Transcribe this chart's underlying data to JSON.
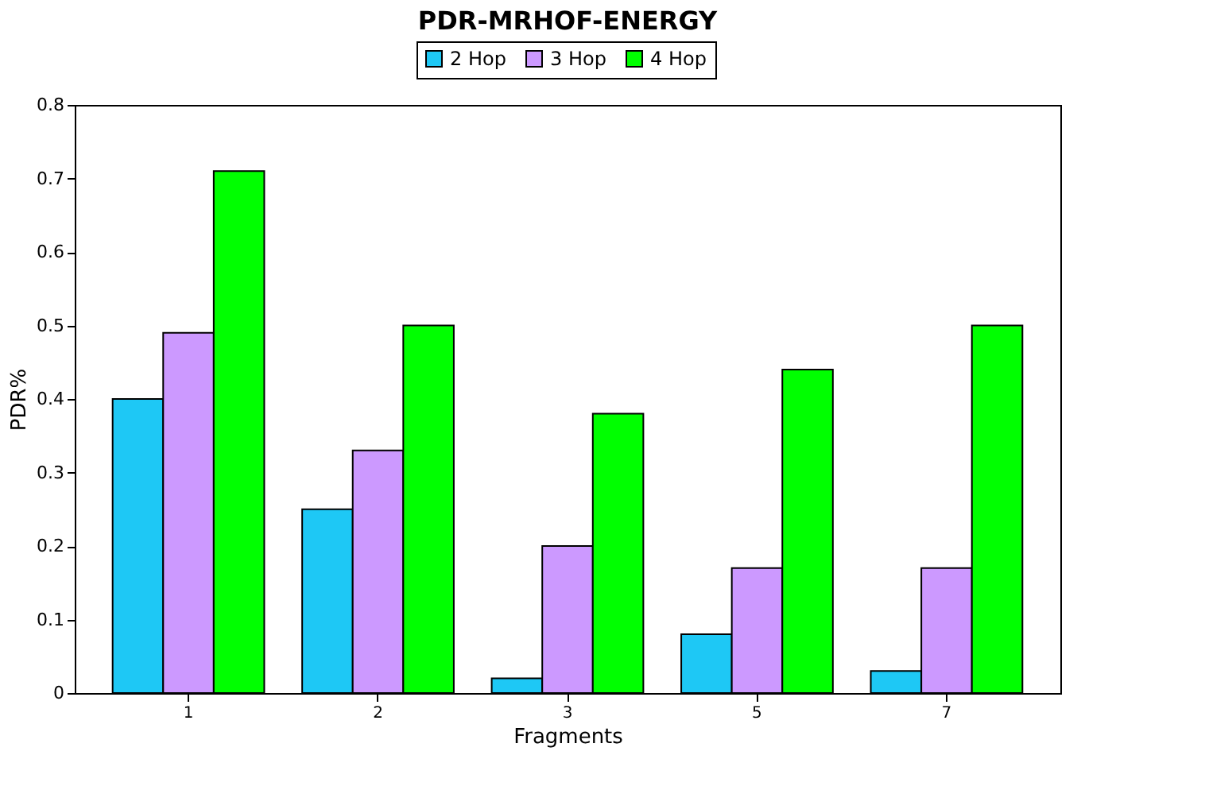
{
  "chart_data": {
    "type": "bar",
    "title": "PDR-MRHOF-ENERGY",
    "xlabel": "Fragments",
    "ylabel": "PDR%",
    "categories": [
      "1",
      "2",
      "3",
      "5",
      "7"
    ],
    "series": [
      {
        "name": "2 Hop",
        "color": "#1ec8f5",
        "values": [
          0.4,
          0.25,
          0.02,
          0.08,
          0.03
        ]
      },
      {
        "name": "3 Hop",
        "color": "#cc99ff",
        "values": [
          0.49,
          0.33,
          0.2,
          0.17,
          0.17
        ]
      },
      {
        "name": "4 Hop",
        "color": "#00ff00",
        "values": [
          0.71,
          0.5,
          0.38,
          0.44,
          0.5
        ]
      }
    ],
    "ylim": [
      0,
      0.8
    ],
    "yticks": [
      0,
      0.1,
      0.2,
      0.3,
      0.4,
      0.5,
      0.6,
      0.7,
      0.8
    ],
    "grid": false,
    "legend": "top"
  }
}
